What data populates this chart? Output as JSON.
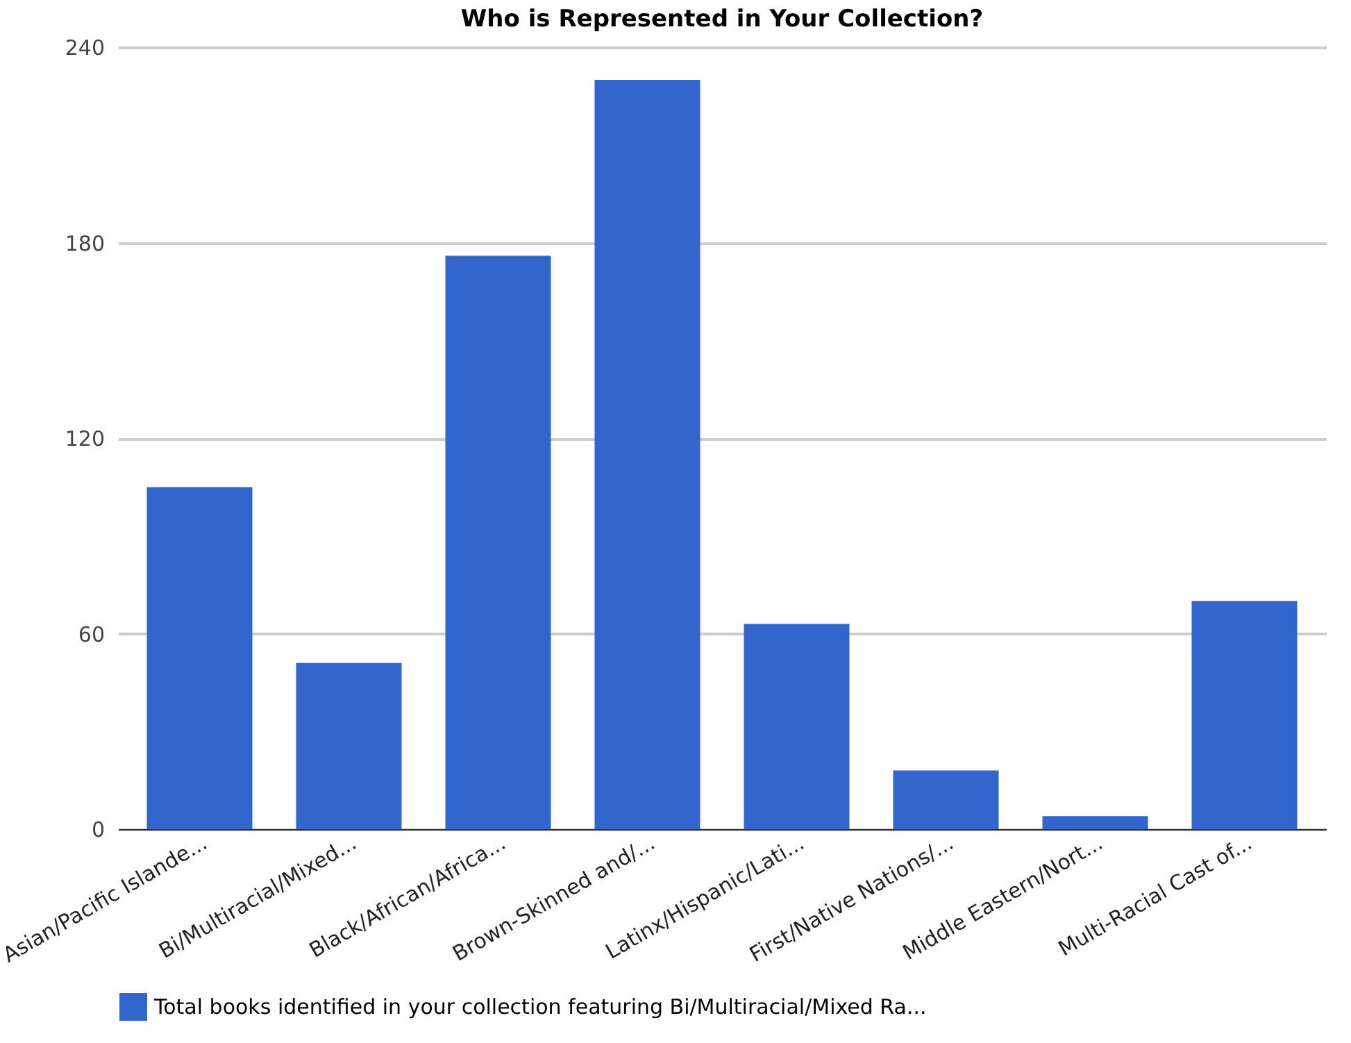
{
  "chart_data": {
    "type": "bar",
    "title": "Who is Represented in Your Collection?",
    "categories": [
      "Asian/Pacific Islande...",
      "Bi/Multiracial/Mixed...",
      "Black/African/Africa...",
      "Brown-Skinned and/...",
      "Latinx/Hispanic/Lati...",
      "First/Native Nations/...",
      "Middle Eastern/Nort...",
      "Multi-Racial Cast of..."
    ],
    "series": [
      {
        "name": "Total books identified in your collection featuring Bi/Multiracial/Mixed Ra...",
        "color": "#3366cc",
        "values": [
          105,
          51,
          176,
          230,
          63,
          18,
          4,
          70
        ]
      }
    ],
    "ylim": [
      0,
      240
    ],
    "yticks": [
      0,
      60,
      120,
      180,
      240
    ],
    "grid": "y",
    "legend": "bottom"
  }
}
